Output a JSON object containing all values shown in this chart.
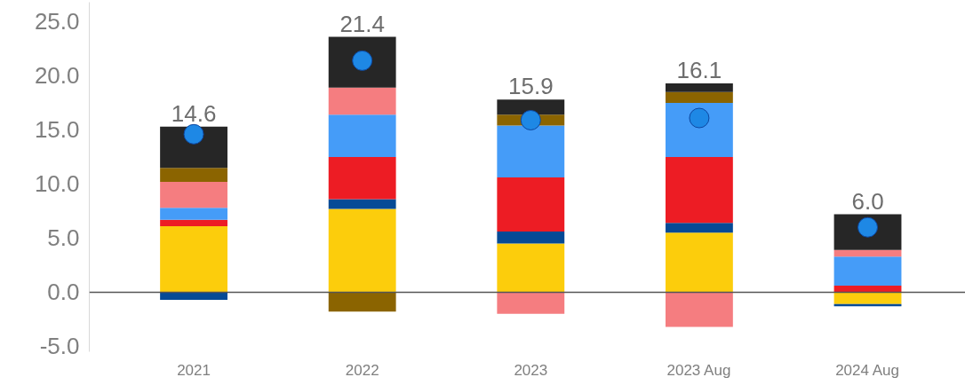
{
  "chart_data": {
    "type": "bar",
    "stacked": true,
    "categories": [
      "2021",
      "2022",
      "2023",
      "2023 Aug",
      "2024 Aug"
    ],
    "series": [
      {
        "color": "#fccd0c",
        "values": [
          6.1,
          7.7,
          4.5,
          5.5,
          -1.1
        ]
      },
      {
        "color": "#054a96",
        "values": [
          -0.7,
          0.9,
          1.1,
          0.9,
          -0.2
        ]
      },
      {
        "color": "#ed1c24",
        "values": [
          0.6,
          3.9,
          5.0,
          6.1,
          0.6
        ]
      },
      {
        "color": "#459cf8",
        "values": [
          1.1,
          3.9,
          4.8,
          5.0,
          2.7
        ]
      },
      {
        "color": "#f57d80",
        "values": [
          2.4,
          2.5,
          -2.0,
          -3.2,
          0.6
        ]
      },
      {
        "color": "#8b6400",
        "values": [
          1.3,
          -1.8,
          1.0,
          1.0,
          null
        ]
      },
      {
        "color": "#262626",
        "values": [
          3.8,
          4.7,
          1.4,
          0.8,
          3.3
        ]
      },
      {
        "type": "scatter",
        "color": "#1e88e5",
        "marker": "circle",
        "values": [
          14.6,
          21.4,
          15.9,
          16.1,
          6.0
        ],
        "value_labels": [
          "14.6",
          "21.4",
          "15.9",
          "16.1",
          "6.0"
        ]
      }
    ],
    "ylim": [
      -5.5,
      26.8
    ],
    "yticks": [
      {
        "value": -5,
        "label": "-5.0"
      },
      {
        "value": 0,
        "label": "0.0"
      },
      {
        "value": 5,
        "label": "5.0"
      },
      {
        "value": 10,
        "label": "10.0"
      },
      {
        "value": 15,
        "label": "15.0"
      },
      {
        "value": 20,
        "label": "20.0"
      },
      {
        "value": 25,
        "label": "25.0"
      }
    ],
    "ref_lines": [
      {
        "axis": "y",
        "value": 0,
        "color": "#555555"
      }
    ],
    "grid": false
  }
}
